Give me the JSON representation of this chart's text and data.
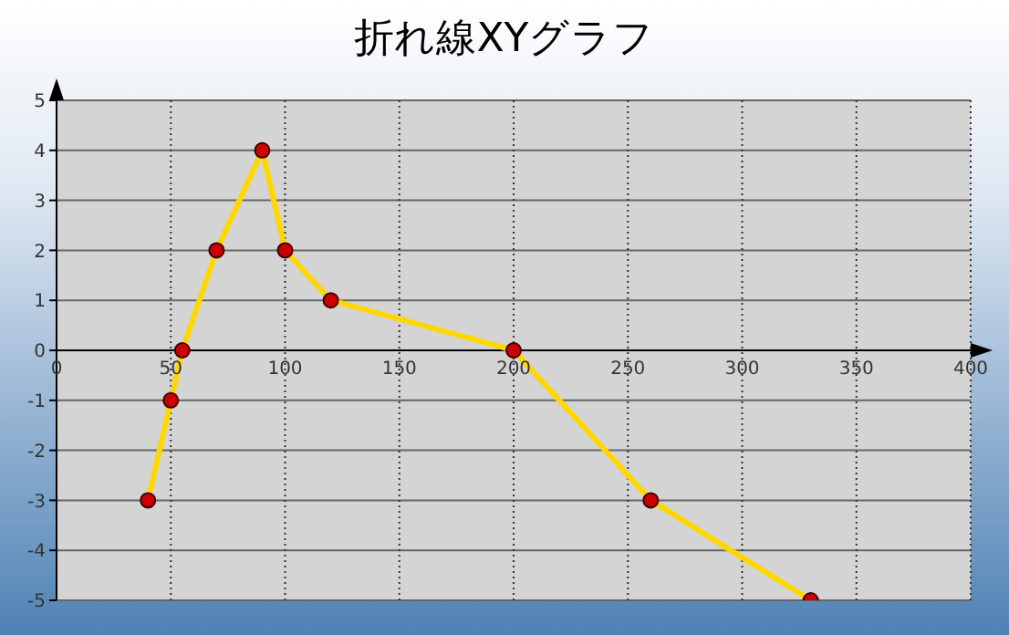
{
  "chart_data": {
    "type": "line",
    "title": "折れ線XYグラフ",
    "x": [
      40,
      50,
      55,
      70,
      90,
      100,
      120,
      200,
      260,
      330
    ],
    "series": [
      {
        "color": "#ffd700",
        "values": [
          -3,
          -1,
          0,
          2,
          4,
          2,
          1,
          0,
          -3,
          -5
        ]
      }
    ],
    "xlim": [
      0,
      400
    ],
    "xticks": [
      0,
      50,
      100,
      150,
      200,
      250,
      300,
      350,
      400
    ],
    "ylim": [
      -5,
      5
    ],
    "yticks": [
      -5,
      -4,
      -3,
      -2,
      -1,
      0,
      1,
      2,
      3,
      4,
      5
    ],
    "grid": true,
    "marker": "circle",
    "line_style": "solid"
  }
}
